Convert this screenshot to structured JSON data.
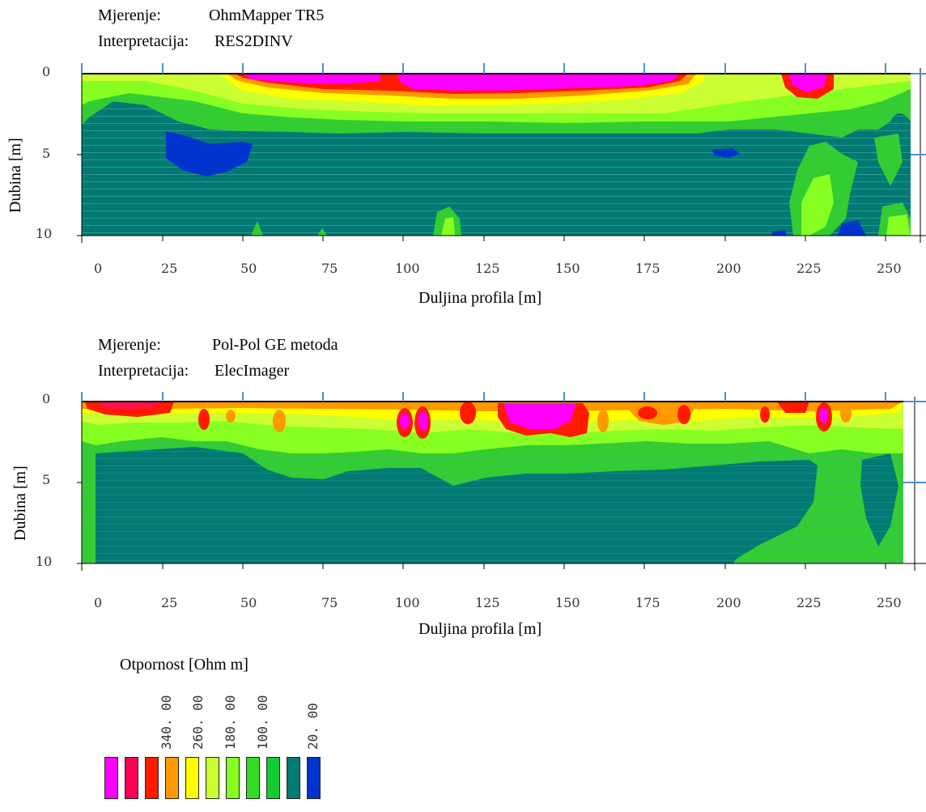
{
  "panels": [
    {
      "measurement_label": "Mjerenje:",
      "measurement_value": "OhmMapper TR5",
      "interpretation_label": "Interpretacija:",
      "interpretation_value": "RES2DINV",
      "xlabel": "Duljina profila [m]",
      "ylabel": "Dubina [m]"
    },
    {
      "measurement_label": "Mjerenje:",
      "measurement_value": "Pol-Pol GE metoda",
      "interpretation_label": "Interpretacija:",
      "interpretation_value": "ElecImager",
      "xlabel": "Duljina profila [m]",
      "ylabel": "Dubina [m]"
    }
  ],
  "legend": {
    "title": "Otpornost [Ohm m]",
    "labels": [
      "340. 00",
      "260. 00",
      "180. 00",
      "100. 00",
      "20. 00"
    ],
    "colors": [
      "#ff00ff",
      "#ff0055",
      "#ff1a00",
      "#ff9900",
      "#ffff00",
      "#ccff33",
      "#88ff22",
      "#33dd22",
      "#11cc33",
      "#007a73",
      "#0033cc"
    ]
  },
  "chart_data": [
    {
      "type": "heatmap",
      "title": "OhmMapper TR5 / RES2DINV",
      "xlabel": "Duljina profila [m]",
      "ylabel": "Dubina [m]",
      "xlim": [
        0,
        258
      ],
      "ylim": [
        0,
        10
      ],
      "x_ticks": [
        0,
        25,
        50,
        75,
        100,
        125,
        150,
        175,
        200,
        225,
        250
      ],
      "y_ticks": [
        0,
        5,
        10
      ],
      "colorbar": [
        "340. 00",
        "260. 00",
        "180. 00",
        "100. 00",
        "20. 00"
      ]
    },
    {
      "type": "heatmap",
      "title": "Pol-Pol GE metoda / ElecImager",
      "xlabel": "Duljina profila [m]",
      "ylabel": "Dubina [m]",
      "xlim": [
        0,
        258
      ],
      "ylim": [
        0,
        10
      ],
      "x_ticks": [
        0,
        25,
        50,
        75,
        100,
        125,
        150,
        175,
        200,
        225,
        250
      ],
      "y_ticks": [
        0,
        5,
        10
      ],
      "colorbar": [
        "340. 00",
        "260. 00",
        "180. 00",
        "100. 00",
        "20. 00"
      ]
    }
  ]
}
